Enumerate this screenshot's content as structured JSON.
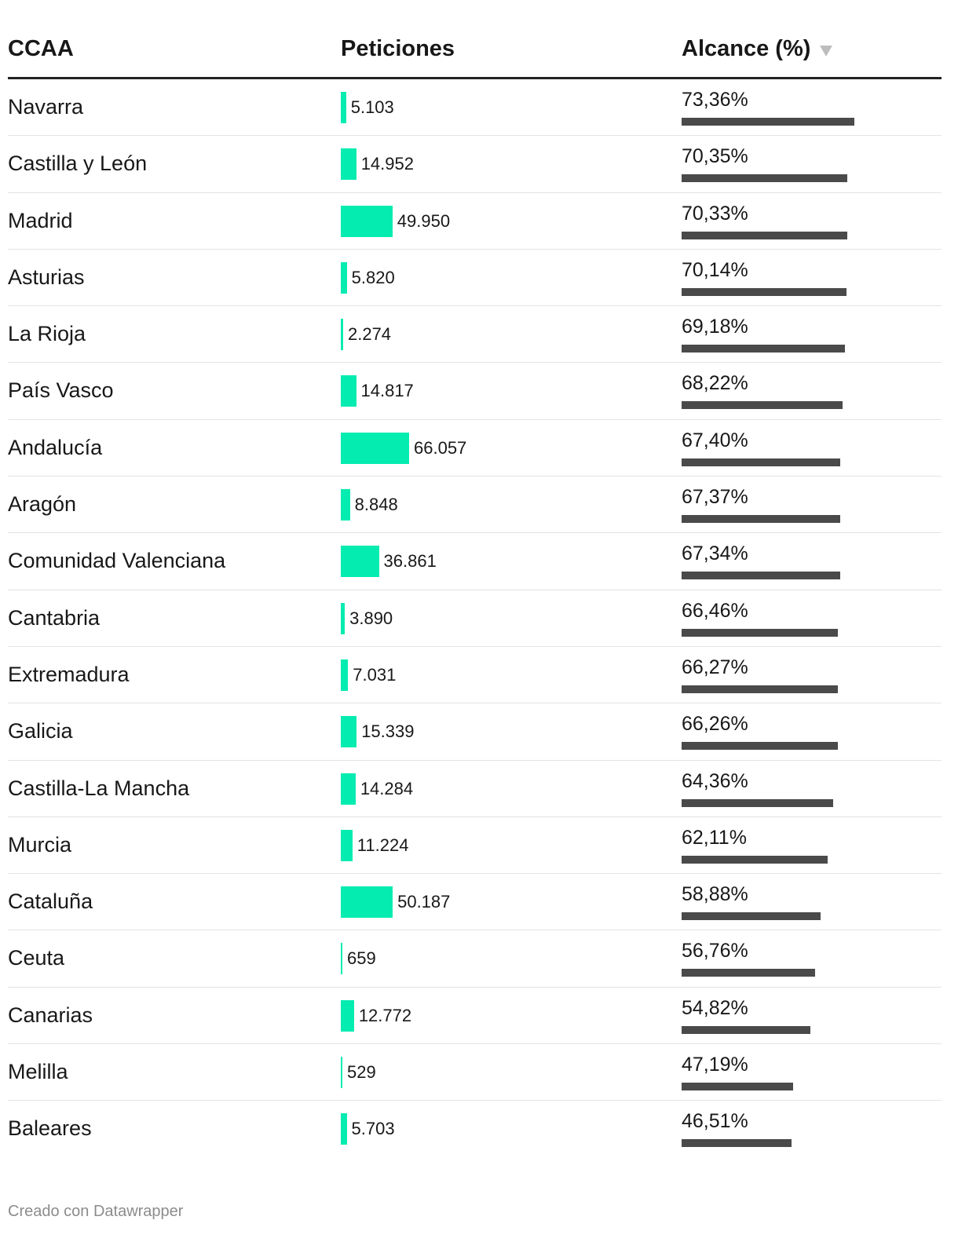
{
  "headers": {
    "ccaa": "CCAA",
    "peticiones": "Peticiones",
    "alcance": "Alcance (%)"
  },
  "footer": "Creado con Datawrapper",
  "colors": {
    "peticiones_bar": "#05ecb0",
    "alcance_bar": "#4a4a4a",
    "header_rule": "#222222",
    "row_rule": "#e3e3e3"
  },
  "sort": {
    "column": "alcance",
    "direction": "descending",
    "icon": "sort-descending-icon"
  },
  "chart_data": {
    "type": "table",
    "columns": [
      "CCAA",
      "Peticiones",
      "Alcance (%)"
    ],
    "rows": [
      {
        "ccaa": "Navarra",
        "peticiones": 5103,
        "peticiones_label": "5.103",
        "alcance": 73.36,
        "alcance_label": "73,36%"
      },
      {
        "ccaa": "Castilla y León",
        "peticiones": 14952,
        "peticiones_label": "14.952",
        "alcance": 70.35,
        "alcance_label": "70,35%"
      },
      {
        "ccaa": "Madrid",
        "peticiones": 49950,
        "peticiones_label": "49.950",
        "alcance": 70.33,
        "alcance_label": "70,33%"
      },
      {
        "ccaa": "Asturias",
        "peticiones": 5820,
        "peticiones_label": "5.820",
        "alcance": 70.14,
        "alcance_label": "70,14%"
      },
      {
        "ccaa": "La Rioja",
        "peticiones": 2274,
        "peticiones_label": "2.274",
        "alcance": 69.18,
        "alcance_label": "69,18%"
      },
      {
        "ccaa": "País Vasco",
        "peticiones": 14817,
        "peticiones_label": "14.817",
        "alcance": 68.22,
        "alcance_label": "68,22%"
      },
      {
        "ccaa": "Andalucía",
        "peticiones": 66057,
        "peticiones_label": "66.057",
        "alcance": 67.4,
        "alcance_label": "67,40%"
      },
      {
        "ccaa": "Aragón",
        "peticiones": 8848,
        "peticiones_label": "8.848",
        "alcance": 67.37,
        "alcance_label": "67,37%"
      },
      {
        "ccaa": "Comunidad Valenciana",
        "peticiones": 36861,
        "peticiones_label": "36.861",
        "alcance": 67.34,
        "alcance_label": "67,34%"
      },
      {
        "ccaa": "Cantabria",
        "peticiones": 3890,
        "peticiones_label": "3.890",
        "alcance": 66.46,
        "alcance_label": "66,46%"
      },
      {
        "ccaa": "Extremadura",
        "peticiones": 7031,
        "peticiones_label": "7.031",
        "alcance": 66.27,
        "alcance_label": "66,27%"
      },
      {
        "ccaa": "Galicia",
        "peticiones": 15339,
        "peticiones_label": "15.339",
        "alcance": 66.26,
        "alcance_label": "66,26%"
      },
      {
        "ccaa": "Castilla-La Mancha",
        "peticiones": 14284,
        "peticiones_label": "14.284",
        "alcance": 64.36,
        "alcance_label": "64,36%"
      },
      {
        "ccaa": "Murcia",
        "peticiones": 11224,
        "peticiones_label": "11.224",
        "alcance": 62.11,
        "alcance_label": "62,11%"
      },
      {
        "ccaa": "Cataluña",
        "peticiones": 50187,
        "peticiones_label": "50.187",
        "alcance": 58.88,
        "alcance_label": "58,88%"
      },
      {
        "ccaa": "Ceuta",
        "peticiones": 659,
        "peticiones_label": "659",
        "alcance": 56.76,
        "alcance_label": "56,76%"
      },
      {
        "ccaa": "Canarias",
        "peticiones": 12772,
        "peticiones_label": "12.772",
        "alcance": 54.82,
        "alcance_label": "54,82%"
      },
      {
        "ccaa": "Melilla",
        "peticiones": 529,
        "peticiones_label": "529",
        "alcance": 47.19,
        "alcance_label": "47,19%"
      },
      {
        "ccaa": "Baleares",
        "peticiones": 5703,
        "peticiones_label": "5.703",
        "alcance": 46.51,
        "alcance_label": "46,51%"
      }
    ]
  }
}
